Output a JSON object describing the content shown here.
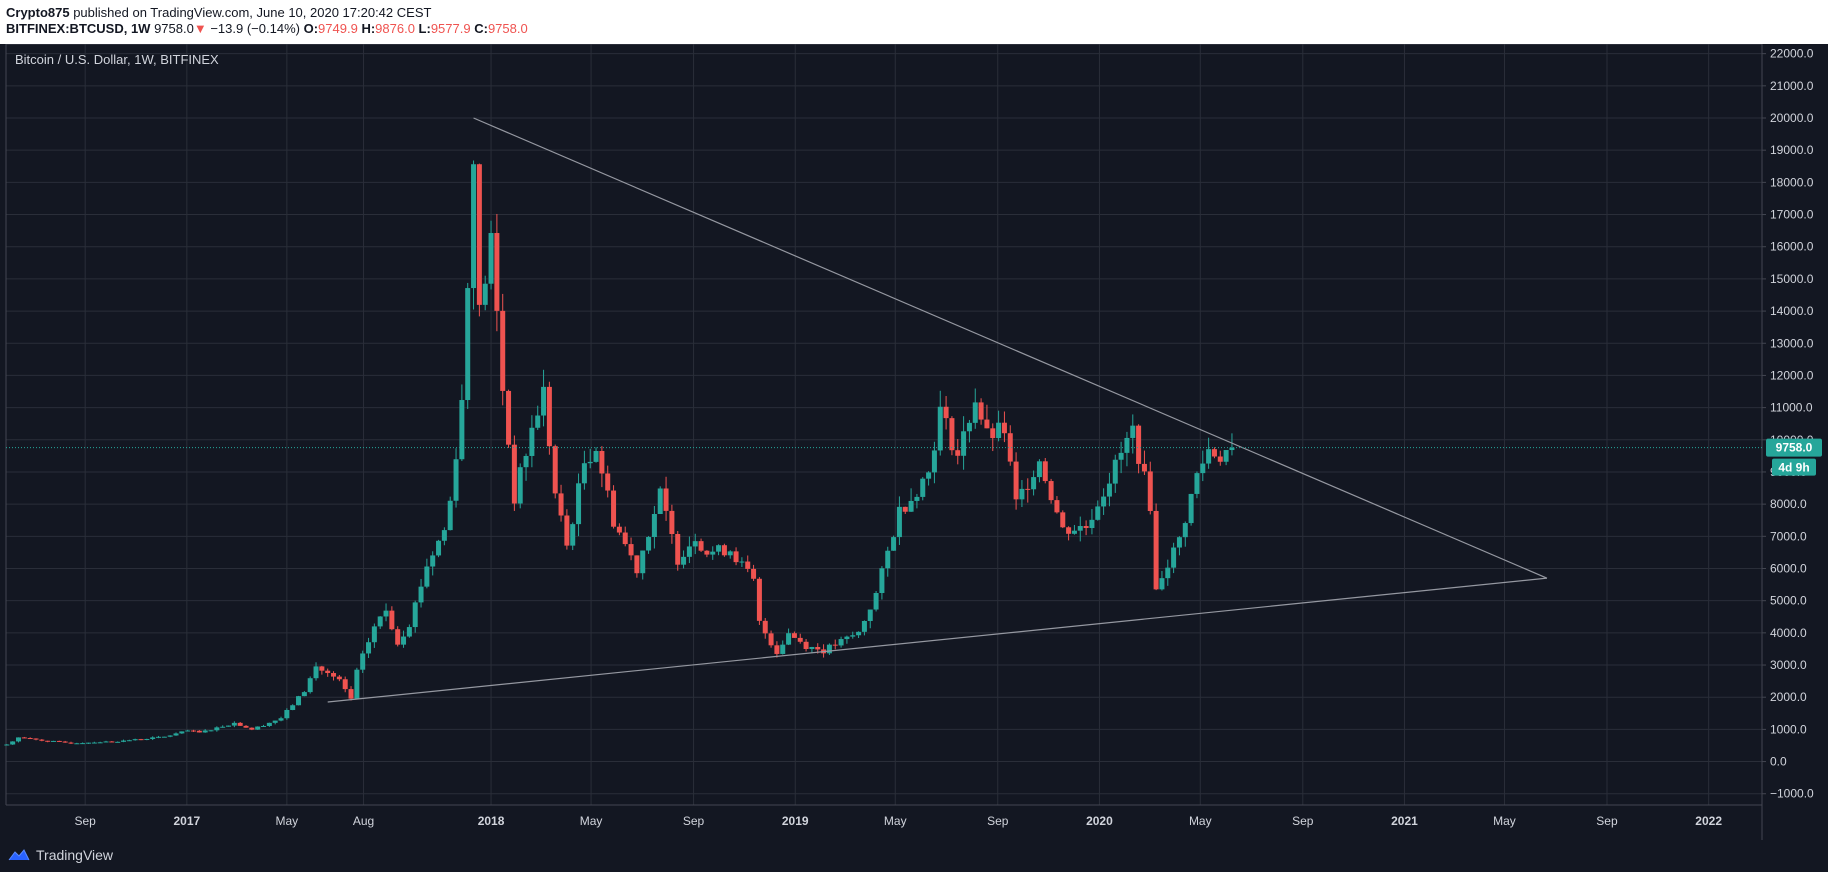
{
  "header": {
    "publisher": "Crypto875",
    "published_text": "published on TradingView.com, June 10, 2020 17:20:42 CEST",
    "symbol": "BITFINEX:BTCUSD, 1W",
    "last_price": "9758.0",
    "change": "−13.9 (−0.14%)",
    "o_label": "O:",
    "o_value": "9749.9",
    "h_label": "H:",
    "h_value": "9876.0",
    "l_label": "L:",
    "l_value": "9577.9",
    "c_label": "C:",
    "c_value": "9758.0"
  },
  "chart_title": "Bitcoin / U.S. Dollar, 1W, BITFINEX",
  "footer": {
    "brand": "TradingView",
    "logo_icon": "tradingview-logo-icon"
  },
  "colors": {
    "up": "#26a69a",
    "down": "#ef5350",
    "bg": "#131722",
    "grid": "#2a2e39",
    "trendline": "#9598a1",
    "label_bg": "#26a69a"
  },
  "chart_data": {
    "type": "candlestick",
    "title": "Bitcoin / U.S. Dollar, 1W, BITFINEX",
    "y_ticks": [
      22000,
      21000,
      20000,
      19000,
      18000,
      17000,
      16000,
      15000,
      14000,
      13000,
      12000,
      11000,
      10000,
      9000,
      8000,
      7000,
      6000,
      5000,
      4000,
      3000,
      2000,
      1000,
      0,
      -1000
    ],
    "y_tick_labels": [
      "22000.0",
      "21000.0",
      "20000.0",
      "19000.0",
      "18000.0",
      "17000.0",
      "16000.0",
      "15000.0",
      "14000.0",
      "13000.0",
      "12000.0",
      "11000.0",
      "10000.0",
      "9000.0",
      "8000.0",
      "7000.0",
      "6000.0",
      "5000.0",
      "4000.0",
      "3000.0",
      "2000.0",
      "1000.0",
      "0.0",
      "−1000.0"
    ],
    "ylim": [
      -1350,
      22300
    ],
    "x_ticks": [
      {
        "label": "Sep",
        "date": "2016-09-01"
      },
      {
        "label": "2017",
        "date": "2017-01-01"
      },
      {
        "label": "May",
        "date": "2017-05-01"
      },
      {
        "label": "Aug",
        "date": "2017-08-01"
      },
      {
        "label": "2018",
        "date": "2018-01-01"
      },
      {
        "label": "May",
        "date": "2018-05-01"
      },
      {
        "label": "Sep",
        "date": "2018-09-01"
      },
      {
        "label": "2019",
        "date": "2019-01-01"
      },
      {
        "label": "May",
        "date": "2019-05-01"
      },
      {
        "label": "Sep",
        "date": "2019-09-01"
      },
      {
        "label": "2020",
        "date": "2020-01-01"
      },
      {
        "label": "May",
        "date": "2020-05-01"
      },
      {
        "label": "Sep",
        "date": "2020-09-01"
      },
      {
        "label": "2021",
        "date": "2021-01-01"
      },
      {
        "label": "May",
        "date": "2021-05-01"
      },
      {
        "label": "Sep",
        "date": "2021-09-01"
      },
      {
        "label": "2022",
        "date": "2022-01-01"
      }
    ],
    "xlim": [
      "2016-05-29",
      "2022-03-06"
    ],
    "interval": "1W",
    "ohlc_anchors": [
      {
        "date": "2016-05-30",
        "close": 530
      },
      {
        "date": "2016-06-13",
        "close": 750
      },
      {
        "date": "2016-07-11",
        "close": 660
      },
      {
        "date": "2016-08-15",
        "close": 570
      },
      {
        "date": "2016-10-10",
        "close": 630
      },
      {
        "date": "2016-12-05",
        "close": 770
      },
      {
        "date": "2017-01-02",
        "close": 960
      },
      {
        "date": "2017-01-16",
        "close": 900
      },
      {
        "date": "2017-02-27",
        "close": 1200
      },
      {
        "date": "2017-03-20",
        "close": 1000
      },
      {
        "date": "2017-04-24",
        "close": 1350
      },
      {
        "date": "2017-05-22",
        "close": 2200
      },
      {
        "date": "2017-06-05",
        "close": 2950
      },
      {
        "date": "2017-07-03",
        "close": 2500
      },
      {
        "date": "2017-07-17",
        "close": 1950
      },
      {
        "date": "2017-07-24",
        "close": 2800
      },
      {
        "date": "2017-08-14",
        "close": 4200
      },
      {
        "date": "2017-08-28",
        "close": 4700
      },
      {
        "date": "2017-09-11",
        "close": 3700
      },
      {
        "date": "2017-09-25",
        "close": 4300
      },
      {
        "date": "2017-10-16",
        "close": 6100
      },
      {
        "date": "2017-11-06",
        "close": 7200
      },
      {
        "date": "2017-11-13",
        "close": 8100
      },
      {
        "date": "2017-11-27",
        "close": 11200
      },
      {
        "date": "2017-12-04",
        "close": 14800
      },
      {
        "date": "2017-12-11",
        "close": 19100
      },
      {
        "date": "2017-12-18",
        "close": 13900
      },
      {
        "date": "2018-01-01",
        "close": 16200
      },
      {
        "date": "2018-01-15",
        "close": 11600
      },
      {
        "date": "2018-01-29",
        "close": 8200
      },
      {
        "date": "2018-02-19",
        "close": 10300
      },
      {
        "date": "2018-03-05",
        "close": 11500
      },
      {
        "date": "2018-03-19",
        "close": 8300
      },
      {
        "date": "2018-04-02",
        "close": 6700
      },
      {
        "date": "2018-04-23",
        "close": 9300
      },
      {
        "date": "2018-05-07",
        "close": 9800
      },
      {
        "date": "2018-05-28",
        "close": 7500
      },
      {
        "date": "2018-06-25",
        "close": 6000
      },
      {
        "date": "2018-07-23",
        "close": 8300
      },
      {
        "date": "2018-08-13",
        "close": 6300
      },
      {
        "date": "2018-09-03",
        "close": 7000
      },
      {
        "date": "2018-09-17",
        "close": 6500
      },
      {
        "date": "2018-10-15",
        "close": 6600
      },
      {
        "date": "2018-11-12",
        "close": 5600
      },
      {
        "date": "2018-11-19",
        "close": 4300
      },
      {
        "date": "2018-12-10",
        "close": 3400
      },
      {
        "date": "2018-12-24",
        "close": 4000
      },
      {
        "date": "2019-01-14",
        "close": 3600
      },
      {
        "date": "2019-02-04",
        "close": 3450
      },
      {
        "date": "2019-03-18",
        "close": 4000
      },
      {
        "date": "2019-04-08",
        "close": 5200
      },
      {
        "date": "2019-05-06",
        "close": 7800
      },
      {
        "date": "2019-05-20",
        "close": 8200
      },
      {
        "date": "2019-06-10",
        "close": 9000
      },
      {
        "date": "2019-06-24",
        "close": 10900
      },
      {
        "date": "2019-07-15",
        "close": 9500
      },
      {
        "date": "2019-08-05",
        "close": 11300
      },
      {
        "date": "2019-08-19",
        "close": 10100
      },
      {
        "date": "2019-09-09",
        "close": 10300
      },
      {
        "date": "2019-09-23",
        "close": 8000
      },
      {
        "date": "2019-10-21",
        "close": 9400
      },
      {
        "date": "2019-11-18",
        "close": 7200
      },
      {
        "date": "2019-12-16",
        "close": 7300
      },
      {
        "date": "2020-01-13",
        "close": 8800
      },
      {
        "date": "2020-02-10",
        "close": 10300
      },
      {
        "date": "2020-03-02",
        "close": 8000
      },
      {
        "date": "2020-03-09",
        "close": 5300
      },
      {
        "date": "2020-03-16",
        "close": 5800
      },
      {
        "date": "2020-04-06",
        "close": 6900
      },
      {
        "date": "2020-04-27",
        "close": 8900
      },
      {
        "date": "2020-05-11",
        "close": 9700
      },
      {
        "date": "2020-05-25",
        "close": 9500
      },
      {
        "date": "2020-06-08",
        "close": 9758
      }
    ],
    "trendlines": [
      {
        "name": "",
        "from": {
          "date": "2017-12-11",
          "price": 20000
        },
        "to": {
          "date": "2021-06-21",
          "price": 5700
        }
      },
      {
        "name": "",
        "from": {
          "date": "2017-06-19",
          "price": 1850
        },
        "to": {
          "date": "2021-06-21",
          "price": 5700
        }
      }
    ],
    "last_price_line": 9758,
    "price_label": "9758.0",
    "countdown_label": "4d 9h",
    "grid": true
  }
}
